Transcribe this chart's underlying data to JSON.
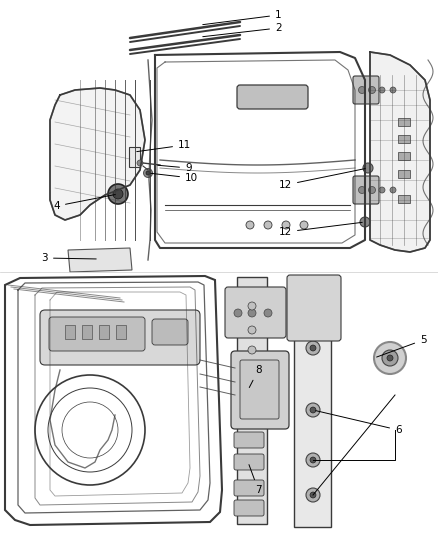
{
  "bg": "#ffffff",
  "fig_w": 4.38,
  "fig_h": 5.33,
  "dpi": 100,
  "label_fs": 7.5,
  "line_color": "#3a3a3a",
  "light_gray": "#c0c0c0",
  "mid_gray": "#888888",
  "dark_gray": "#444444",
  "very_light": "#e8e8e8"
}
